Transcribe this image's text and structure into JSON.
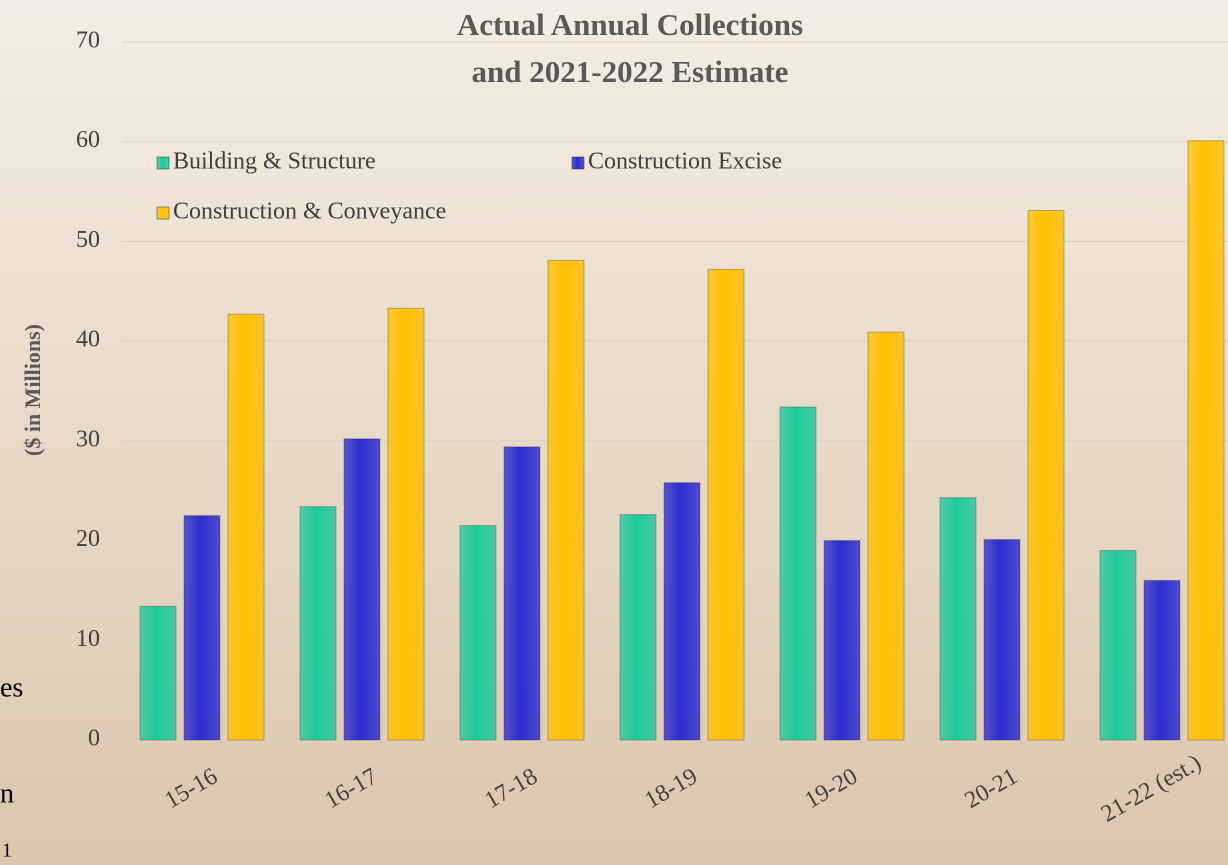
{
  "chart_data": {
    "type": "bar",
    "title": [
      "Actual Annual Collections",
      "and 2021-2022 Estimate"
    ],
    "y_label": "($ in Millions)",
    "categories": [
      "15-16",
      "16-17",
      "17-18",
      "18-19",
      "19-20",
      "20-21",
      "21-22 (est.)"
    ],
    "series": [
      {
        "name": "Building & Structure",
        "color": "#1fc99d",
        "values": [
          13.4,
          23.4,
          21.5,
          22.6,
          33.4,
          24.3,
          19.0
        ]
      },
      {
        "name": "Construction Excise",
        "color": "#2b2bd0",
        "values": [
          22.5,
          30.2,
          29.4,
          25.8,
          20.0,
          20.1,
          16.0
        ]
      },
      {
        "name": "Construction & Conveyance",
        "color": "#ffc000",
        "values": [
          42.7,
          43.3,
          48.1,
          47.2,
          40.9,
          53.1,
          60.1
        ]
      }
    ],
    "ylim": [
      0,
      70
    ],
    "yticks": [
      0,
      10,
      20,
      30,
      40,
      50,
      60,
      70
    ],
    "grid": true,
    "legend": "top-left"
  },
  "background_text": [
    "es",
    "n",
    "1"
  ]
}
